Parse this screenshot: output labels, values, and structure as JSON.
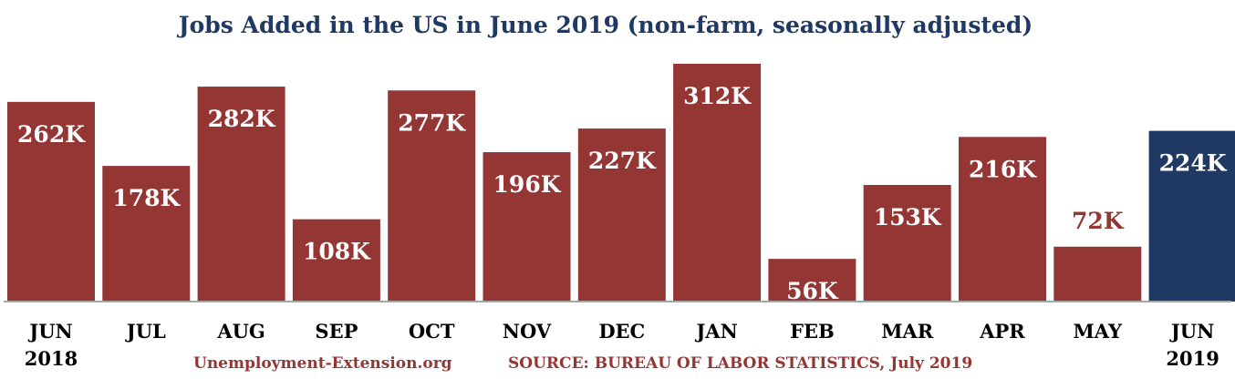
{
  "chart_data": {
    "type": "bar",
    "title": "Jobs Added in the US in June 2019 (non-farm, seasonally adjusted)",
    "categories": [
      "JUN",
      "JUL",
      "AUG",
      "SEP",
      "OCT",
      "NOV",
      "DEC",
      "JAN",
      "FEB",
      "MAR",
      "APR",
      "MAY",
      "JUN"
    ],
    "category_years": [
      "2018",
      "",
      "",
      "",
      "",
      "",
      "",
      "",
      "",
      "",
      "",
      "",
      "2019"
    ],
    "values": [
      262,
      178,
      282,
      108,
      277,
      196,
      227,
      312,
      56,
      153,
      216,
      72,
      224
    ],
    "value_labels": [
      "262K",
      "178K",
      "282K",
      "108K",
      "277K",
      "196K",
      "227K",
      "312K",
      "56K",
      "153K",
      "216K",
      "72K",
      "224K"
    ],
    "label_outside": [
      false,
      false,
      false,
      false,
      false,
      false,
      false,
      false,
      false,
      false,
      false,
      true,
      false
    ],
    "units": "thousands of jobs",
    "ylim": [
      0,
      312
    ],
    "grid": false,
    "legend": "none",
    "colors": {
      "default_bar": "#943634",
      "highlight_bar": "#1f3864",
      "axis_line": "#a6a6a6"
    },
    "highlight_index": 12
  },
  "footer": {
    "site": "Unemployment-Extension.org",
    "source": "SOURCE: BUREAU OF LABOR STATISTICS, July 2019"
  }
}
